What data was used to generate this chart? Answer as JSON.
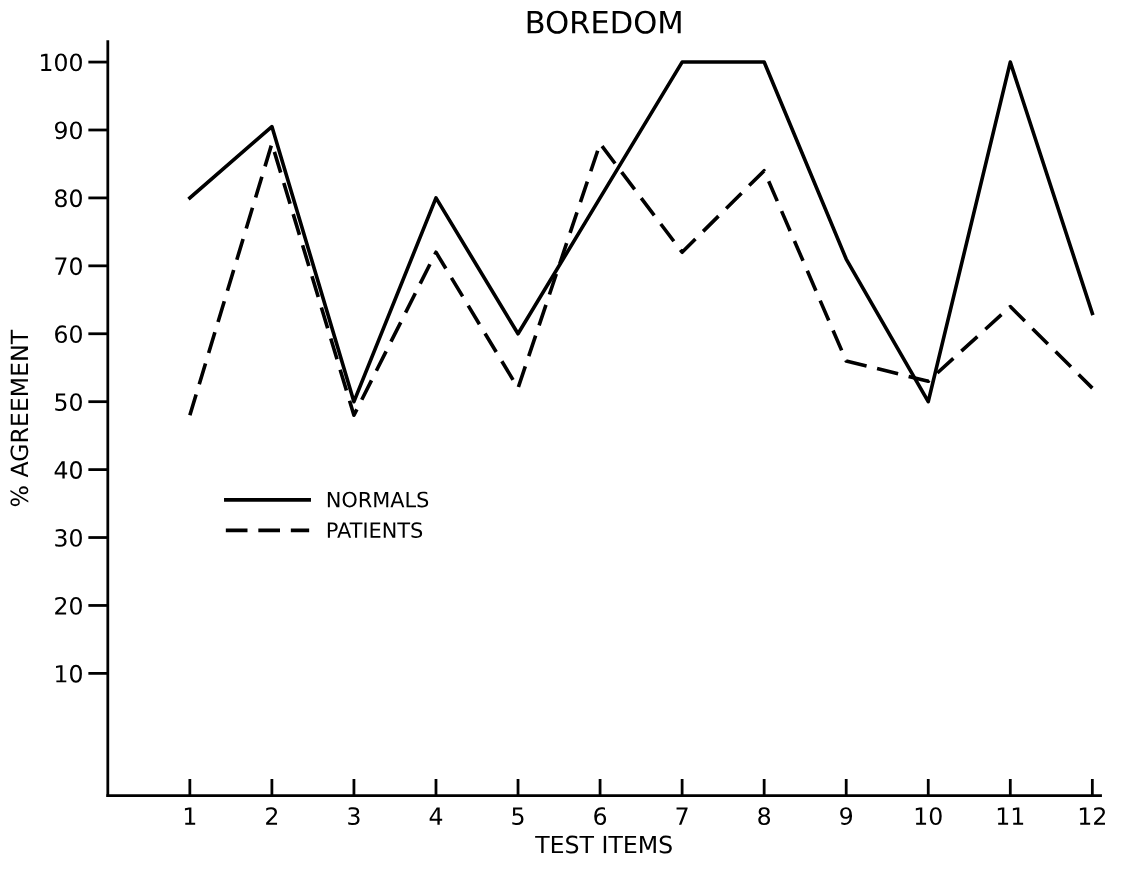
{
  "chart_data": {
    "type": "line",
    "title": "BOREDOM",
    "xlabel": "TEST ITEMS",
    "ylabel": "% AGREEMENT",
    "x": [
      1,
      2,
      3,
      4,
      5,
      6,
      7,
      8,
      9,
      10,
      11,
      12
    ],
    "xlim": [
      0,
      12.1
    ],
    "xticks": [
      1,
      2,
      3,
      4,
      5,
      6,
      7,
      8,
      9,
      10,
      11,
      12
    ],
    "ylim": [
      -8,
      103
    ],
    "yticks": [
      10,
      20,
      30,
      40,
      50,
      60,
      70,
      80,
      90,
      100
    ],
    "series": [
      {
        "name": "NORMALS",
        "color": "#000000",
        "line_style": "solid",
        "values": [
          80,
          90.5,
          50,
          80,
          60,
          80,
          100,
          100,
          71,
          50,
          100,
          63
        ]
      },
      {
        "name": "PATIENTS",
        "color": "#000000",
        "line_style": "dashed",
        "values": [
          48,
          88,
          48,
          72,
          52,
          88,
          72,
          84,
          56,
          53,
          64,
          52
        ]
      }
    ],
    "legend": "left",
    "grid": false,
    "marker": "none"
  }
}
